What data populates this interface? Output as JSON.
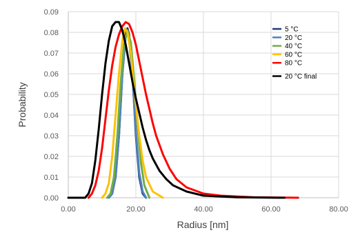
{
  "chart_data": {
    "type": "line",
    "xlabel": "Radius [nm]",
    "ylabel": "Probability",
    "xlim": [
      0,
      80
    ],
    "ylim": [
      0,
      0.09
    ],
    "x_ticks": [
      "0.00",
      "20.00",
      "40.00",
      "60.00",
      "80.00"
    ],
    "y_ticks": [
      "0.00",
      "0.01",
      "0.02",
      "0.03",
      "0.04",
      "0.05",
      "0.06",
      "0.07",
      "0.08",
      "0.09"
    ],
    "grid": true,
    "legend_position": "right",
    "series": [
      {
        "name": "5 °C",
        "color": "#1f3a7a",
        "points": [
          [
            12,
            0
          ],
          [
            13,
            0.002
          ],
          [
            14,
            0.01
          ],
          [
            15,
            0.03
          ],
          [
            16,
            0.06
          ],
          [
            17,
            0.079
          ],
          [
            17.5,
            0.082
          ],
          [
            18,
            0.079
          ],
          [
            19,
            0.06
          ],
          [
            20,
            0.03
          ],
          [
            21,
            0.01
          ],
          [
            22,
            0.002
          ],
          [
            23,
            0
          ]
        ]
      },
      {
        "name": "20 °C",
        "color": "#4f81bd",
        "points": [
          [
            12,
            0
          ],
          [
            13,
            0.002
          ],
          [
            14,
            0.01
          ],
          [
            15,
            0.03
          ],
          [
            16,
            0.06
          ],
          [
            17,
            0.078
          ],
          [
            17.5,
            0.08
          ],
          [
            18,
            0.077
          ],
          [
            19,
            0.058
          ],
          [
            20,
            0.032
          ],
          [
            21,
            0.012
          ],
          [
            22,
            0.003
          ],
          [
            23,
            0
          ]
        ]
      },
      {
        "name": "40 °C",
        "color": "#70ad47",
        "points": [
          [
            11.5,
            0
          ],
          [
            12.5,
            0.002
          ],
          [
            13.5,
            0.01
          ],
          [
            14.5,
            0.03
          ],
          [
            15.5,
            0.055
          ],
          [
            16.5,
            0.074
          ],
          [
            17.5,
            0.081
          ],
          [
            18.5,
            0.075
          ],
          [
            19.5,
            0.057
          ],
          [
            20.5,
            0.035
          ],
          [
            21.5,
            0.017
          ],
          [
            22.5,
            0.006
          ],
          [
            24,
            0
          ]
        ]
      },
      {
        "name": "60 °C",
        "color": "#ffc000",
        "points": [
          [
            10,
            0
          ],
          [
            11,
            0.002
          ],
          [
            12,
            0.007
          ],
          [
            13,
            0.02
          ],
          [
            14,
            0.04
          ],
          [
            15,
            0.06
          ],
          [
            16,
            0.076
          ],
          [
            16.8,
            0.082
          ],
          [
            17.5,
            0.08
          ],
          [
            18.5,
            0.07
          ],
          [
            20,
            0.045
          ],
          [
            21,
            0.03
          ],
          [
            22,
            0.018
          ],
          [
            23,
            0.01
          ],
          [
            25,
            0.003
          ],
          [
            28,
            0
          ]
        ]
      },
      {
        "name": "80 °C",
        "color": "#ff0000",
        "points": [
          [
            6,
            0
          ],
          [
            7,
            0.002
          ],
          [
            8,
            0.006
          ],
          [
            9,
            0.013
          ],
          [
            10,
            0.024
          ],
          [
            11,
            0.038
          ],
          [
            12,
            0.052
          ],
          [
            13,
            0.064
          ],
          [
            14,
            0.073
          ],
          [
            15,
            0.079
          ],
          [
            16,
            0.083
          ],
          [
            17,
            0.085
          ],
          [
            18,
            0.084
          ],
          [
            19,
            0.08
          ],
          [
            20,
            0.074
          ],
          [
            21,
            0.066
          ],
          [
            22,
            0.058
          ],
          [
            23,
            0.05
          ],
          [
            24,
            0.043
          ],
          [
            25,
            0.036
          ],
          [
            26,
            0.03
          ],
          [
            28,
            0.021
          ],
          [
            30,
            0.014
          ],
          [
            32,
            0.009
          ],
          [
            35,
            0.005
          ],
          [
            40,
            0.002
          ],
          [
            45,
            0.001
          ],
          [
            55,
            0.0002
          ],
          [
            68,
            0
          ]
        ]
      },
      {
        "name": "20 °C final",
        "color": "#000000",
        "points": [
          [
            0,
            0
          ],
          [
            5,
            0
          ],
          [
            6,
            0.002
          ],
          [
            7,
            0.007
          ],
          [
            8,
            0.018
          ],
          [
            9,
            0.033
          ],
          [
            10,
            0.05
          ],
          [
            11,
            0.065
          ],
          [
            12,
            0.076
          ],
          [
            13,
            0.083
          ],
          [
            14,
            0.085
          ],
          [
            15,
            0.085
          ],
          [
            16,
            0.081
          ],
          [
            17,
            0.074
          ],
          [
            18,
            0.065
          ],
          [
            19,
            0.056
          ],
          [
            20,
            0.048
          ],
          [
            21,
            0.041
          ],
          [
            22,
            0.034
          ],
          [
            23,
            0.028
          ],
          [
            24,
            0.023
          ],
          [
            25,
            0.019
          ],
          [
            27,
            0.013
          ],
          [
            29,
            0.009
          ],
          [
            31,
            0.006
          ],
          [
            35,
            0.003
          ],
          [
            40,
            0.001
          ],
          [
            50,
            0.0002
          ],
          [
            62,
            0
          ],
          [
            64,
            0
          ]
        ]
      }
    ]
  }
}
